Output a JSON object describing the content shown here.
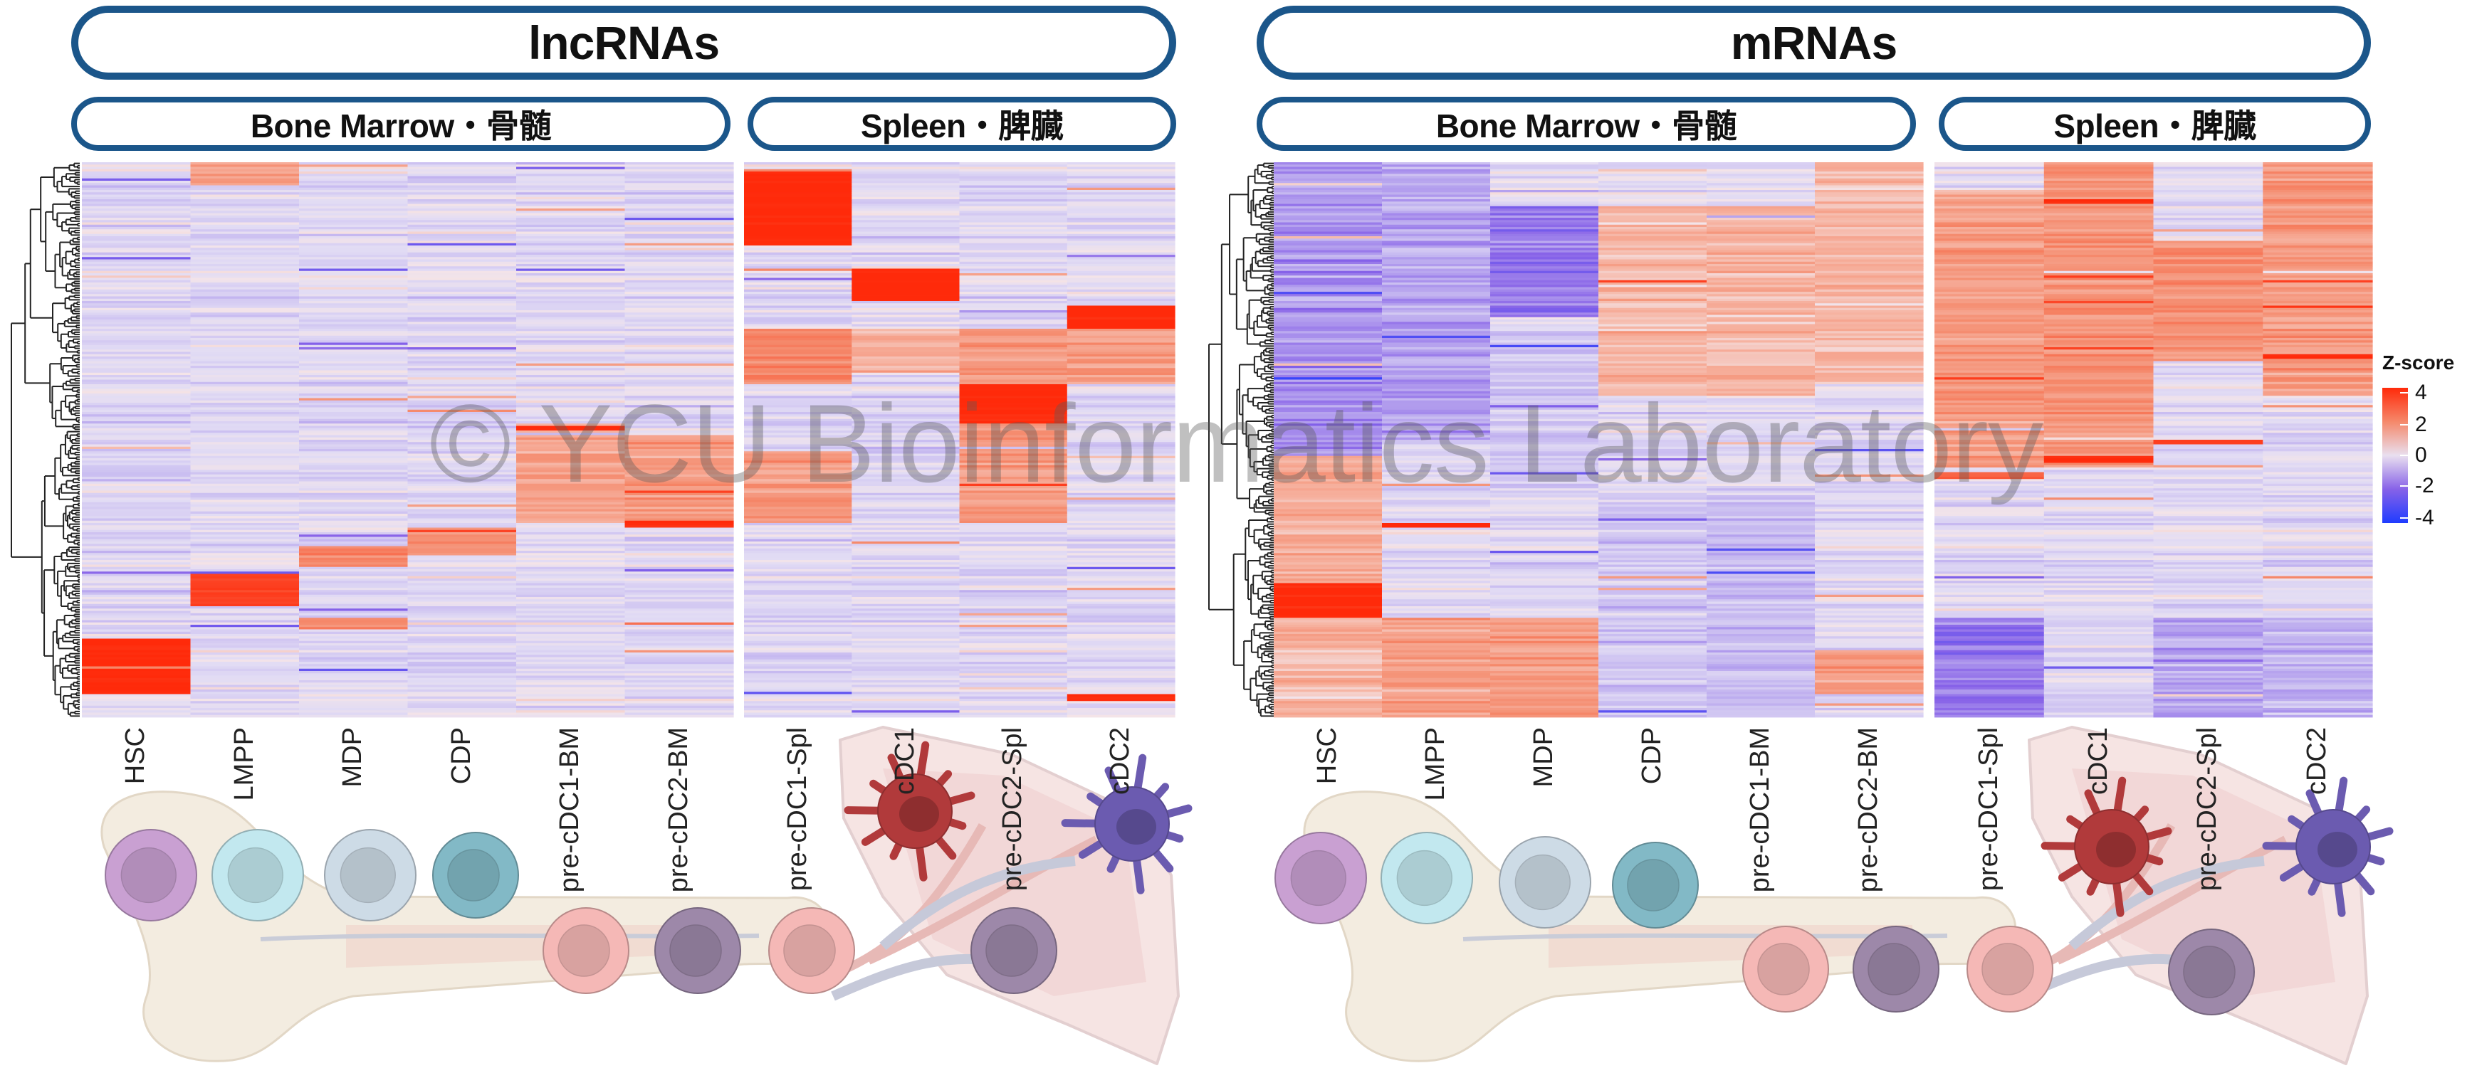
{
  "watermark": "© YCU Bioinformatics Laboratory",
  "panels": [
    {
      "title": "lncRNAs",
      "groups": [
        {
          "label": "Bone Marrow・骨髄"
        },
        {
          "label": "Spleen・脾臓"
        }
      ]
    },
    {
      "title": "mRNAs",
      "groups": [
        {
          "label": "Bone Marrow・骨髄"
        },
        {
          "label": "Spleen・脾臓"
        }
      ]
    }
  ],
  "legend": {
    "title": "Z-score",
    "ticks": [
      "4",
      "2",
      "0",
      "-2",
      "-4"
    ]
  },
  "colors": {
    "frame": "#1b568a",
    "z_high": "#ff2a0a",
    "z_mid": "#efebf4",
    "z_low": "#1f3cff",
    "cells": {
      "HSC": "#c9a0d2",
      "LMPP": "#c2e8ef",
      "MDP": "#cddbe6",
      "CDP": "#82b9c6",
      "pre-cDC1": "#f5b8b6",
      "pre-cDC2": "#9d88a9",
      "cDC1": "#b13a3b",
      "cDC2": "#6b5bb0"
    }
  },
  "chart_data": [
    {
      "type": "heatmap",
      "title": "lncRNAs",
      "columns": [
        "HSC",
        "LMPP",
        "MDP",
        "CDP",
        "pre-cDC1-BM",
        "pre-cDC2-BM",
        "pre-cDC1-Spl",
        "cDC1",
        "pre-cDC2-Spl",
        "cDC2"
      ],
      "column_groups": [
        {
          "name": "Bone Marrow・骨髄",
          "columns": 6
        },
        {
          "name": "Spleen・脾臓",
          "columns": 4
        }
      ],
      "value_range": [
        -4,
        4
      ],
      "row_dendrogram": true,
      "cluster_pattern_note_units": "gene rank fraction (top=0, bottom=1) and mean z-score",
      "clusters": {
        "HSC": [
          [
            0.86,
            0.96,
            4.0
          ]
        ],
        "LMPP": [
          [
            0.0,
            0.04,
            1.5
          ],
          [
            0.74,
            0.8,
            3.5
          ]
        ],
        "MDP": [
          [
            0.69,
            0.73,
            2.0
          ],
          [
            0.82,
            0.84,
            2.0
          ]
        ],
        "CDP": [
          [
            0.66,
            0.71,
            1.8
          ]
        ],
        "pre-cDC1-BM": [
          [
            0.47,
            0.65,
            1.4
          ],
          [
            0.475,
            0.485,
            4.0
          ]
        ],
        "pre-cDC2-BM": [
          [
            0.49,
            0.66,
            1.6
          ],
          [
            0.645,
            0.66,
            4.0
          ]
        ],
        "pre-cDC1-Spl": [
          [
            0.015,
            0.15,
            4.0
          ],
          [
            0.3,
            0.4,
            2.0
          ],
          [
            0.52,
            0.65,
            1.6
          ]
        ],
        "cDC1": [
          [
            0.19,
            0.25,
            4.0
          ],
          [
            0.3,
            0.38,
            1.2
          ]
        ],
        "pre-cDC2-Spl": [
          [
            0.4,
            0.47,
            4.0
          ],
          [
            0.3,
            0.4,
            1.6
          ],
          [
            0.47,
            0.65,
            1.6
          ]
        ],
        "cDC2": [
          [
            0.26,
            0.3,
            4.0
          ],
          [
            0.3,
            0.4,
            1.5
          ],
          [
            0.96,
            0.97,
            4.0
          ]
        ]
      }
    },
    {
      "type": "heatmap",
      "title": "mRNAs",
      "columns": [
        "HSC",
        "LMPP",
        "MDP",
        "CDP",
        "pre-cDC1-BM",
        "pre-cDC2-BM",
        "pre-cDC1-Spl",
        "cDC1",
        "pre-cDC2-Spl",
        "cDC2"
      ],
      "column_groups": [
        {
          "name": "Bone Marrow・骨髄",
          "columns": 6
        },
        {
          "name": "Spleen・脾臓",
          "columns": 4
        }
      ],
      "value_range": [
        -4,
        4
      ],
      "row_dendrogram": true,
      "cluster_pattern_note_units": "gene rank fraction (top=0, bottom=1) and mean z-score",
      "clusters": {
        "HSC": [
          [
            0.0,
            0.53,
            -1.4
          ],
          [
            0.53,
            0.76,
            1.3
          ],
          [
            0.76,
            0.82,
            4.0
          ],
          [
            0.82,
            1.0,
            1.0
          ]
        ],
        "LMPP": [
          [
            0.0,
            0.5,
            -1.2
          ],
          [
            0.65,
            0.66,
            4.0
          ],
          [
            0.82,
            1.0,
            1.5
          ]
        ],
        "MDP": [
          [
            0.08,
            0.28,
            -1.8
          ],
          [
            0.3,
            0.6,
            -0.6
          ],
          [
            0.82,
            1.0,
            1.6
          ]
        ],
        "CDP": [
          [
            0.08,
            0.42,
            1.0
          ],
          [
            0.6,
            1.0,
            -0.6
          ]
        ],
        "pre-cDC1-BM": [
          [
            0.08,
            0.42,
            1.0
          ],
          [
            0.6,
            1.0,
            -0.8
          ]
        ],
        "pre-cDC2-BM": [
          [
            0.0,
            0.4,
            1.0
          ],
          [
            0.88,
            0.96,
            1.6
          ]
        ],
        "pre-cDC1-Spl": [
          [
            0.05,
            0.55,
            1.6
          ],
          [
            0.56,
            0.57,
            3.0
          ],
          [
            0.82,
            1.0,
            -1.8
          ]
        ],
        "cDC1": [
          [
            0.0,
            0.55,
            1.8
          ],
          [
            0.065,
            0.075,
            4.0
          ],
          [
            0.53,
            0.54,
            4.0
          ]
        ],
        "pre-cDC2-Spl": [
          [
            0.14,
            0.36,
            1.8
          ],
          [
            0.5,
            0.51,
            3.5
          ],
          [
            0.82,
            1.0,
            -1.2
          ]
        ],
        "cDC2": [
          [
            0.0,
            0.42,
            1.6
          ],
          [
            0.345,
            0.355,
            4.0
          ],
          [
            0.82,
            1.0,
            -1.0
          ]
        ]
      }
    }
  ]
}
